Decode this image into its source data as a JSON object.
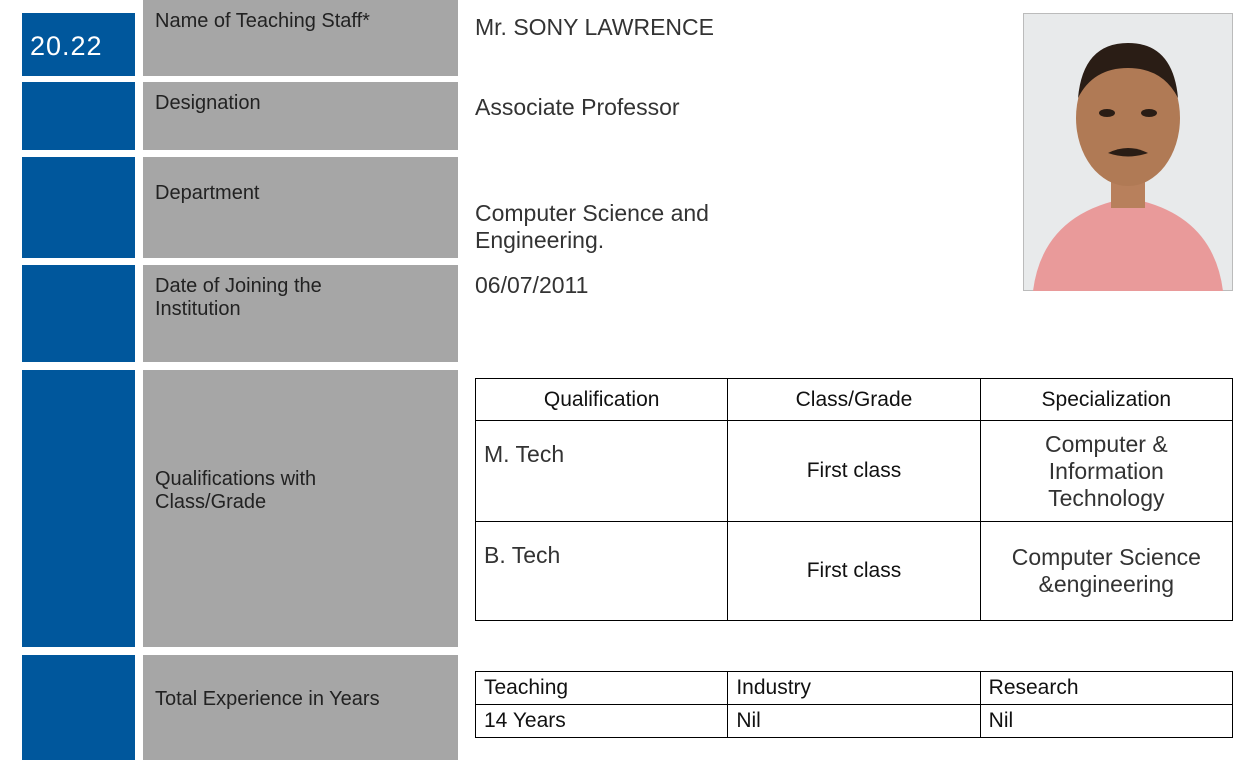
{
  "id": "20.22",
  "fields": [
    {
      "label": "Name of Teaching Staff*",
      "value": "Mr. SONY LAWRENCE"
    },
    {
      "label": "Designation",
      "value": "Associate  Professor"
    },
    {
      "label": "Department",
      "value": "Computer Science and Engineering."
    },
    {
      "label": "Date of Joining the Institution",
      "value": "06/07/2011"
    }
  ],
  "qualifications": {
    "label": "Qualifications with Class/Grade",
    "header": [
      "Qualification",
      "Class/Grade",
      "Specialization"
    ],
    "rows": [
      [
        "M. Tech",
        "First class",
        "Computer & Information Technology"
      ],
      [
        "B. Tech",
        "First class",
        "Computer Science &engineering"
      ]
    ]
  },
  "experience": {
    "label": "Total Experience in Years",
    "header": [
      "Teaching",
      "Industry",
      "Research"
    ],
    "rows": [
      [
        "14 Years",
        "Nil",
        "Nil"
      ]
    ]
  }
}
